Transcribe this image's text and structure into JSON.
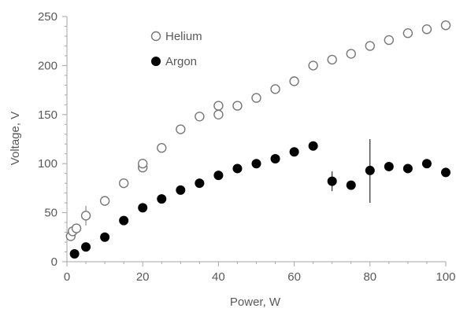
{
  "chart_data": {
    "type": "scatter",
    "title": "",
    "xlabel": "Power, W",
    "ylabel": "Voltage, V",
    "xlim": [
      0,
      100
    ],
    "ylim": [
      0,
      250
    ],
    "x_ticks": [
      "0",
      "20",
      "40",
      "60",
      "80",
      "100"
    ],
    "y_ticks": [
      "0",
      "50",
      "100",
      "150",
      "200",
      "250"
    ],
    "grid": false,
    "legend_position": "top-left",
    "series": [
      {
        "name": "Helium",
        "marker": "open-circle",
        "color": "#777777",
        "points": [
          {
            "x": 1,
            "y": 26
          },
          {
            "x": 1.5,
            "y": 31
          },
          {
            "x": 2.5,
            "y": 34
          },
          {
            "x": 5,
            "y": 47
          },
          {
            "x": 10,
            "y": 62
          },
          {
            "x": 15,
            "y": 80
          },
          {
            "x": 20,
            "y": 96
          },
          {
            "x": 20,
            "y": 100
          },
          {
            "x": 25,
            "y": 116
          },
          {
            "x": 30,
            "y": 135
          },
          {
            "x": 35,
            "y": 148
          },
          {
            "x": 40,
            "y": 150
          },
          {
            "x": 40,
            "y": 159
          },
          {
            "x": 45,
            "y": 159
          },
          {
            "x": 50,
            "y": 167
          },
          {
            "x": 55,
            "y": 176
          },
          {
            "x": 60,
            "y": 184
          },
          {
            "x": 65,
            "y": 200
          },
          {
            "x": 70,
            "y": 206
          },
          {
            "x": 75,
            "y": 212
          },
          {
            "x": 80,
            "y": 220
          },
          {
            "x": 85,
            "y": 226
          },
          {
            "x": 90,
            "y": 233
          },
          {
            "x": 95,
            "y": 237
          },
          {
            "x": 100,
            "y": 241
          }
        ],
        "error_bars": [
          {
            "x": 5,
            "low": 37,
            "high": 57
          }
        ]
      },
      {
        "name": "Argon",
        "marker": "filled-circle",
        "color": "#000000",
        "points": [
          {
            "x": 2,
            "y": 8
          },
          {
            "x": 5,
            "y": 15
          },
          {
            "x": 10,
            "y": 25
          },
          {
            "x": 15,
            "y": 42
          },
          {
            "x": 20,
            "y": 55
          },
          {
            "x": 25,
            "y": 64
          },
          {
            "x": 30,
            "y": 73
          },
          {
            "x": 35,
            "y": 80
          },
          {
            "x": 40,
            "y": 88
          },
          {
            "x": 45,
            "y": 95
          },
          {
            "x": 50,
            "y": 100
          },
          {
            "x": 55,
            "y": 105
          },
          {
            "x": 60,
            "y": 112
          },
          {
            "x": 65,
            "y": 118
          },
          {
            "x": 70,
            "y": 82
          },
          {
            "x": 75,
            "y": 78
          },
          {
            "x": 80,
            "y": 93
          },
          {
            "x": 85,
            "y": 97
          },
          {
            "x": 90,
            "y": 95
          },
          {
            "x": 95,
            "y": 100
          },
          {
            "x": 100,
            "y": 91
          }
        ],
        "error_bars": [
          {
            "x": 70,
            "low": 72,
            "high": 92
          },
          {
            "x": 80,
            "low": 60,
            "high": 125
          }
        ]
      }
    ]
  }
}
